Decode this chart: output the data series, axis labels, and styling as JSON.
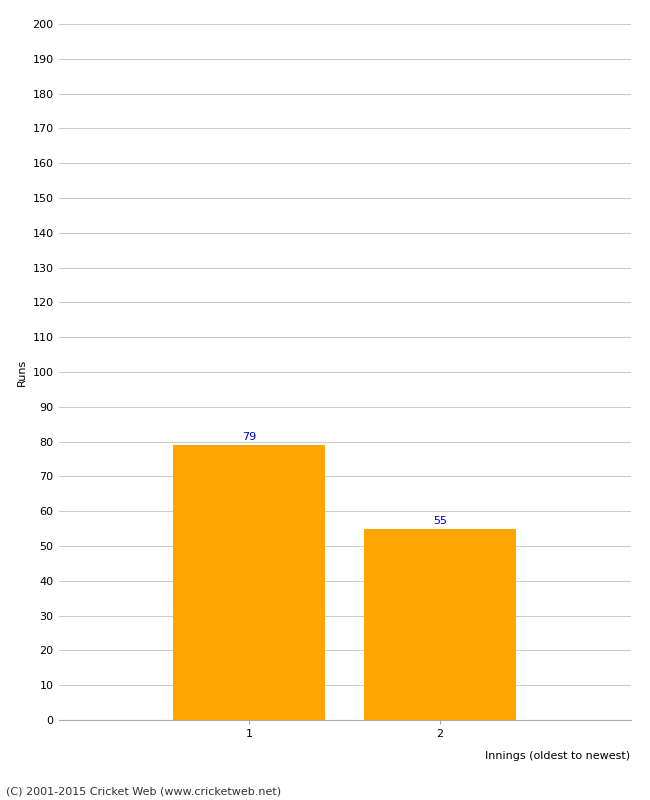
{
  "categories": [
    "1",
    "2"
  ],
  "values": [
    79,
    55
  ],
  "bar_color": "#FFA500",
  "bar_edge_color": "#FFA500",
  "xlabel": "Innings (oldest to newest)",
  "ylabel": "Runs",
  "ylim": [
    0,
    200
  ],
  "yticks": [
    0,
    10,
    20,
    30,
    40,
    50,
    60,
    70,
    80,
    90,
    100,
    110,
    120,
    130,
    140,
    150,
    160,
    170,
    180,
    190,
    200
  ],
  "value_label_color": "#0000CC",
  "value_label_fontsize": 8,
  "tick_label_fontsize": 8,
  "ylabel_fontsize": 8,
  "xlabel_fontsize": 8,
  "footer_text": "(C) 2001-2015 Cricket Web (www.cricketweb.net)",
  "footer_fontsize": 8,
  "background_color": "#ffffff",
  "grid_color": "#cccccc",
  "bar_width": 0.8,
  "xlim": [
    0,
    3
  ]
}
